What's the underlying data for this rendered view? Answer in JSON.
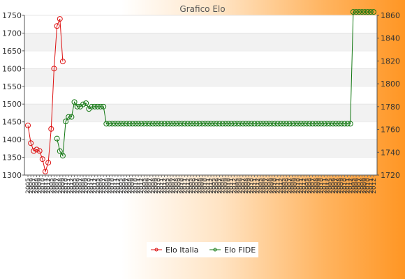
{
  "chart_data": {
    "type": "line",
    "title": "Grafico Elo",
    "xlabel": "",
    "ylabel": "",
    "y_left": {
      "lim": [
        1300,
        1750
      ],
      "ticks": [
        1300,
        1350,
        1400,
        1450,
        1500,
        1550,
        1600,
        1650,
        1700,
        1750
      ]
    },
    "y_right": {
      "lim": [
        1720,
        1860
      ],
      "ticks": [
        1720,
        1740,
        1760,
        1780,
        1800,
        1820,
        1840,
        1860
      ]
    },
    "grid": "horizontal bands",
    "legend": "bottom-center",
    "x_count": 120,
    "x_labels_pattern": [
      "2005",
      "2006",
      "2007",
      "2008",
      "2009",
      "2010",
      "2011",
      "2012"
    ],
    "series": [
      {
        "name": "Elo Italia",
        "axis": "left",
        "color": "#dd1111",
        "values": [
          1440,
          1390,
          1368,
          1372,
          1368,
          1345,
          1310,
          1335,
          1430,
          1600,
          1720,
          1740,
          1620
        ]
      },
      {
        "name": "Elo FIDE",
        "axis": "right",
        "color": "#117711",
        "segments": [
          {
            "start": 10,
            "values": [
              1752,
              1741,
              1737,
              1767,
              1771,
              1771,
              1784,
              1780,
              1780,
              1782,
              1783,
              1778,
              1780,
              1780,
              1780,
              1780,
              1780
            ]
          },
          {
            "start": 27,
            "end": 111,
            "value": 1765
          },
          {
            "start": 112,
            "end": 125,
            "value": 1864
          }
        ]
      }
    ]
  }
}
